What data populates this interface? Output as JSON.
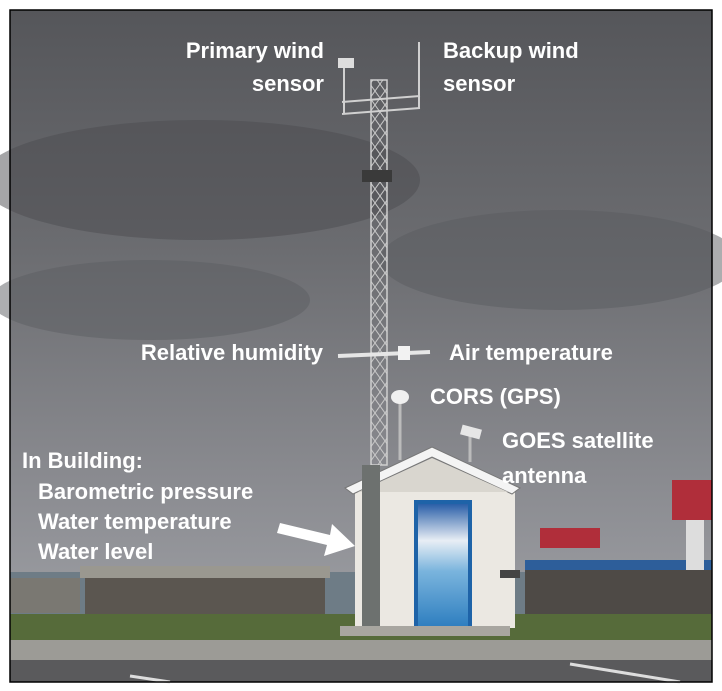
{
  "annotations": [
    {
      "lines": [
        "Primary wind",
        "sensor"
      ]
    },
    {
      "lines": [
        "Backup wind",
        "sensor"
      ]
    },
    {
      "lines": [
        "Relative humidity"
      ]
    },
    {
      "lines": [
        "Air temperature"
      ]
    },
    {
      "lines": [
        "CORS (GPS)"
      ]
    },
    {
      "lines": [
        "GOES satellite",
        "antenna"
      ]
    },
    {
      "lines": [
        "In Building:"
      ]
    },
    {
      "lines": [
        "Barometric pressure",
        "Water temperature",
        "Water level"
      ]
    }
  ]
}
